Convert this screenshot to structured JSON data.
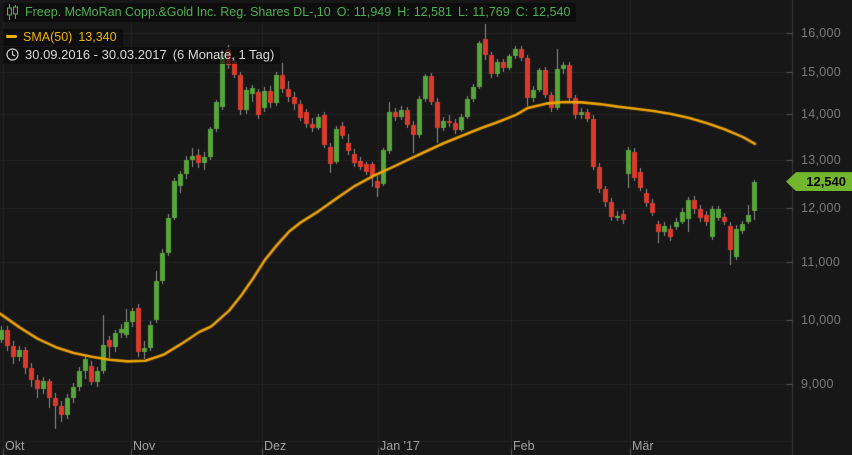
{
  "header": {
    "instrument": "Freep. McMoRan Copp.&Gold Inc. Reg. Shares DL-,10",
    "ohlc": {
      "o_label": "O:",
      "o_value": "11,949",
      "h_label": "H:",
      "h_value": "12,581",
      "l_label": "L:",
      "l_value": "11,769",
      "c_label": "C:",
      "c_value": "12,540"
    },
    "sma": {
      "label": "SMA(50)",
      "value": "13,340"
    },
    "range": {
      "dates": "30.09.2016 - 30.03.2017",
      "period": "(6 Monate, 1 Tag)"
    }
  },
  "price_tag": {
    "label": "12,540",
    "value": 12540,
    "bg_color": "#72b62e",
    "text_color": "#000000"
  },
  "colors": {
    "background": "#171717",
    "grid": "#242424",
    "axis_line": "#3a3a3a",
    "tick": "#585858",
    "candle_up": "#57a639",
    "candle_down": "#dc3b2c",
    "wick": "#8f8f8f",
    "sma_line": "#f0a500",
    "legend_green": "#4cb050",
    "legend_yellow": "#f0b400",
    "y_label": "#7a7a7a",
    "x_label": "#a2a2a2"
  },
  "chart_data": {
    "type": "candlestick",
    "title": "Freep. McMoRan Copp.&Gold Inc. Reg. Shares DL-,10",
    "interval": "1 Tag",
    "visible_range": "30.09.2016 - 30.03.2017",
    "y_axis": {
      "scale": "log",
      "side": "right",
      "ticks": [
        {
          "v": 16000,
          "label": "16,000"
        },
        {
          "v": 15000,
          "label": "15,000"
        },
        {
          "v": 14000,
          "label": "14,000"
        },
        {
          "v": 13000,
          "label": "13,000"
        },
        {
          "v": 12000,
          "label": "12,000"
        },
        {
          "v": 11000,
          "label": "11,000"
        },
        {
          "v": 10000,
          "label": "10,000"
        },
        {
          "v": 9000,
          "label": "9,000"
        }
      ]
    },
    "x_axis": {
      "months": [
        {
          "label": "Okt",
          "i": 0.2
        },
        {
          "label": "Nov",
          "i": 21.6
        },
        {
          "label": "Dez",
          "i": 43.5
        },
        {
          "label": "Jan '17",
          "i": 62.9
        },
        {
          "label": "Feb",
          "i": 85.2
        },
        {
          "label": "Mär",
          "i": 105.1
        }
      ]
    },
    "last_close": 12540,
    "candles_format": [
      "open",
      "high",
      "low",
      "close"
    ],
    "candles": [
      [
        9680,
        9890,
        9620,
        9830
      ],
      [
        9830,
        9900,
        9500,
        9580
      ],
      [
        9580,
        9650,
        9300,
        9400
      ],
      [
        9400,
        9580,
        9340,
        9510
      ],
      [
        9510,
        9560,
        9150,
        9240
      ],
      [
        9240,
        9320,
        8950,
        9060
      ],
      [
        9060,
        9130,
        8800,
        8930
      ],
      [
        8930,
        9100,
        8850,
        9050
      ],
      [
        9050,
        9080,
        8650,
        8800
      ],
      [
        8800,
        8870,
        8360,
        8680
      ],
      [
        8680,
        8750,
        8450,
        8560
      ],
      [
        8560,
        8850,
        8500,
        8800
      ],
      [
        8800,
        9020,
        8720,
        8960
      ],
      [
        8960,
        9250,
        8900,
        9200
      ],
      [
        9200,
        9420,
        9080,
        9370
      ],
      [
        9270,
        9340,
        8990,
        9030
      ],
      [
        9030,
        9260,
        8960,
        9200
      ],
      [
        9200,
        10070,
        9150,
        9600
      ],
      [
        9680,
        9740,
        9390,
        9560
      ],
      [
        9560,
        9830,
        9480,
        9790
      ],
      [
        9790,
        9930,
        9700,
        9850
      ],
      [
        9750,
        10170,
        9700,
        9970
      ],
      [
        9960,
        10190,
        9880,
        10140
      ],
      [
        10200,
        10260,
        9400,
        9480
      ],
      [
        9480,
        9650,
        9380,
        9540
      ],
      [
        9540,
        9980,
        9500,
        9920
      ],
      [
        10000,
        10830,
        9950,
        10660
      ],
      [
        10660,
        11230,
        10600,
        11160
      ],
      [
        11160,
        11900,
        11100,
        11820
      ],
      [
        11820,
        12620,
        11780,
        12550
      ],
      [
        12450,
        12760,
        12300,
        12690
      ],
      [
        12690,
        13080,
        12600,
        13000
      ],
      [
        13000,
        13250,
        12850,
        13080
      ],
      [
        13100,
        13220,
        12830,
        12930
      ],
      [
        12930,
        13160,
        12780,
        13050
      ],
      [
        13050,
        13720,
        13000,
        13670
      ],
      [
        13670,
        14330,
        13600,
        14280
      ],
      [
        14165,
        15500,
        14100,
        15425
      ],
      [
        15550,
        15690,
        15080,
        15175
      ],
      [
        15250,
        15380,
        14850,
        14925
      ],
      [
        14925,
        15000,
        13980,
        14095
      ],
      [
        14095,
        14650,
        14000,
        14570
      ],
      [
        14470,
        14700,
        14300,
        14620
      ],
      [
        14520,
        14600,
        13900,
        13990
      ],
      [
        14160,
        14640,
        14060,
        14560
      ],
      [
        14560,
        14660,
        14150,
        14260
      ],
      [
        14260,
        15000,
        14200,
        14940
      ],
      [
        14940,
        15230,
        14500,
        14600
      ],
      [
        14600,
        14780,
        14300,
        14410
      ],
      [
        14410,
        14520,
        14100,
        14240
      ],
      [
        14240,
        14330,
        13850,
        13930
      ],
      [
        14050,
        14120,
        13700,
        13780
      ],
      [
        13780,
        13920,
        13600,
        13700
      ],
      [
        13700,
        14010,
        13650,
        13940
      ],
      [
        13980,
        14050,
        13250,
        13320
      ],
      [
        13280,
        13360,
        12710,
        12900
      ],
      [
        12960,
        13740,
        12900,
        13680
      ],
      [
        13740,
        13820,
        13440,
        13520
      ],
      [
        13350,
        13560,
        13100,
        13180
      ],
      [
        13120,
        13220,
        12850,
        12920
      ],
      [
        12980,
        13060,
        12780,
        12840
      ],
      [
        12900,
        12960,
        12680,
        12750
      ],
      [
        12900,
        12950,
        12440,
        12660
      ],
      [
        12550,
        12650,
        12230,
        12420
      ],
      [
        12500,
        13260,
        12450,
        13200
      ],
      [
        13180,
        14300,
        13130,
        14050
      ],
      [
        14050,
        14160,
        13850,
        13950
      ],
      [
        13950,
        14200,
        13870,
        14100
      ],
      [
        14100,
        14180,
        13700,
        13760
      ],
      [
        13760,
        13840,
        13150,
        13540
      ],
      [
        13540,
        14420,
        13480,
        14350
      ],
      [
        14350,
        14950,
        14300,
        14900
      ],
      [
        14900,
        14980,
        14220,
        14300
      ],
      [
        14300,
        14380,
        13350,
        13700
      ],
      [
        13700,
        13940,
        13620,
        13850
      ],
      [
        13850,
        13980,
        13720,
        13800
      ],
      [
        13800,
        13900,
        13560,
        13650
      ],
      [
        13650,
        14020,
        13600,
        13950
      ],
      [
        13950,
        14420,
        13900,
        14350
      ],
      [
        14350,
        14720,
        14280,
        14640
      ],
      [
        14640,
        15800,
        14600,
        15730
      ],
      [
        15850,
        16230,
        15300,
        15430
      ],
      [
        15430,
        15520,
        14850,
        14950
      ],
      [
        14950,
        15320,
        14880,
        15250
      ],
      [
        15250,
        15330,
        15000,
        15120
      ],
      [
        15120,
        15460,
        15060,
        15400
      ],
      [
        15400,
        15650,
        15330,
        15580
      ],
      [
        15580,
        15660,
        15280,
        15350
      ],
      [
        15350,
        15430,
        14200,
        14390
      ],
      [
        14390,
        14660,
        14300,
        14580
      ],
      [
        14580,
        15100,
        14520,
        15050
      ],
      [
        15050,
        15130,
        14380,
        14450
      ],
      [
        14450,
        14530,
        14050,
        14150
      ],
      [
        14150,
        15580,
        14100,
        15080
      ],
      [
        15080,
        15250,
        14950,
        15180
      ],
      [
        15180,
        15260,
        14300,
        14380
      ],
      [
        14380,
        14460,
        13900,
        13980
      ],
      [
        13980,
        14160,
        13900,
        14050
      ],
      [
        14050,
        14130,
        13820,
        13900
      ],
      [
        13900,
        13980,
        12780,
        12850
      ],
      [
        12850,
        12930,
        12300,
        12380
      ],
      [
        12380,
        12450,
        12020,
        12120
      ],
      [
        12120,
        12200,
        11750,
        11830
      ],
      [
        11830,
        11960,
        11760,
        11850
      ],
      [
        11900,
        11980,
        11700,
        11780
      ],
      [
        12700,
        13280,
        12400,
        13215
      ],
      [
        13170,
        13250,
        12550,
        12620
      ],
      [
        12745,
        12820,
        12350,
        12415
      ],
      [
        12300,
        12390,
        12020,
        12100
      ],
      [
        12115,
        12190,
        11850,
        11920
      ],
      [
        11690,
        11760,
        11345,
        11555
      ],
      [
        11540,
        11730,
        11480,
        11660
      ],
      [
        11610,
        11680,
        11380,
        11460
      ],
      [
        11640,
        11810,
        11580,
        11745
      ],
      [
        11745,
        12010,
        11700,
        11940
      ],
      [
        11800,
        12230,
        11555,
        12170
      ],
      [
        12170,
        12250,
        11900,
        11985
      ],
      [
        11985,
        12060,
        11740,
        11810
      ],
      [
        11880,
        11950,
        11660,
        11745
      ],
      [
        11460,
        12050,
        11400,
        11985
      ],
      [
        11810,
        12050,
        11760,
        11985
      ],
      [
        11830,
        11910,
        11670,
        11745
      ],
      [
        11660,
        11740,
        10945,
        11215
      ],
      [
        11090,
        11680,
        11030,
        11610
      ],
      [
        11560,
        11760,
        11500,
        11690
      ],
      [
        11745,
        12070,
        11700,
        11880
      ],
      [
        11949,
        12581,
        11769,
        12540
      ]
    ],
    "sma50": {
      "period": 50,
      "value": 13340,
      "value_label": "13,340",
      "points": [
        [
          0,
          10100
        ],
        [
          3,
          9870
        ],
        [
          6,
          9690
        ],
        [
          9,
          9560
        ],
        [
          12,
          9470
        ],
        [
          15,
          9410
        ],
        [
          18,
          9365
        ],
        [
          21,
          9340
        ],
        [
          24,
          9350
        ],
        [
          27,
          9440
        ],
        [
          30,
          9610
        ],
        [
          33,
          9800
        ],
        [
          35,
          9890
        ],
        [
          38,
          10150
        ],
        [
          40,
          10400
        ],
        [
          42,
          10700
        ],
        [
          44,
          11030
        ],
        [
          46,
          11300
        ],
        [
          48,
          11550
        ],
        [
          50,
          11730
        ],
        [
          53,
          11950
        ],
        [
          56,
          12200
        ],
        [
          59,
          12450
        ],
        [
          62,
          12650
        ],
        [
          65,
          12820
        ],
        [
          68,
          13000
        ],
        [
          71,
          13180
        ],
        [
          74,
          13360
        ],
        [
          77,
          13520
        ],
        [
          80,
          13680
        ],
        [
          83,
          13830
        ],
        [
          86,
          13990
        ],
        [
          88,
          14150
        ],
        [
          91,
          14250
        ],
        [
          94,
          14290
        ],
        [
          97,
          14280
        ],
        [
          100,
          14240
        ],
        [
          103,
          14180
        ],
        [
          106,
          14130
        ],
        [
          109,
          14080
        ],
        [
          112,
          14010
        ],
        [
          115,
          13920
        ],
        [
          118,
          13800
        ],
        [
          121,
          13660
        ],
        [
          124,
          13490
        ],
        [
          126,
          13340
        ]
      ]
    }
  }
}
